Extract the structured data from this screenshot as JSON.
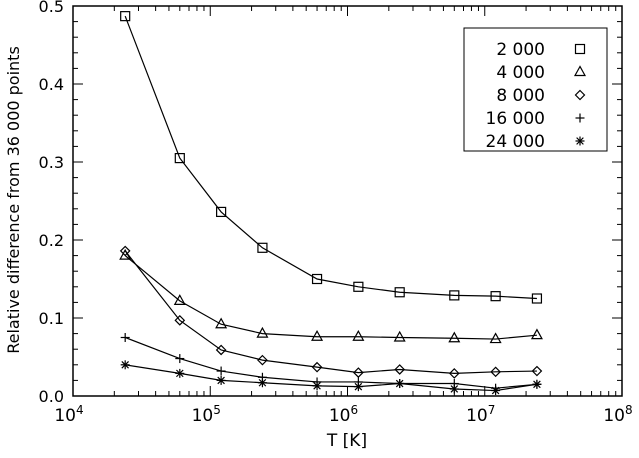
{
  "chart_data": {
    "type": "line",
    "title": "",
    "xlabel": "T [K]",
    "ylabel": "Relative difference from 36 000 points",
    "xscale": "log",
    "xlim": [
      10000,
      100000000
    ],
    "ylim": [
      0,
      0.5
    ],
    "xticks": [
      {
        "base": "10",
        "exp": "4"
      },
      {
        "base": "10",
        "exp": "5"
      },
      {
        "base": "10",
        "exp": "6"
      },
      {
        "base": "10",
        "exp": "7"
      },
      {
        "base": "10",
        "exp": "8"
      }
    ],
    "yticks": [
      "0.0",
      "0.1",
      "0.2",
      "0.3",
      "0.4",
      "0.5"
    ],
    "legend_position": "top-right",
    "x": [
      24000,
      60000,
      120000,
      240000,
      600000,
      1200000,
      2400000,
      6000000,
      12000000,
      24000000
    ],
    "series": [
      {
        "name": "2 000",
        "marker": "square",
        "values": [
          0.487,
          0.305,
          0.236,
          0.19,
          0.15,
          0.14,
          0.133,
          0.129,
          0.128,
          0.125
        ]
      },
      {
        "name": "4 000",
        "marker": "triangle",
        "values": [
          0.18,
          0.122,
          0.092,
          0.08,
          0.076,
          0.076,
          0.075,
          0.074,
          0.073,
          0.078
        ]
      },
      {
        "name": "8 000",
        "marker": "diamond",
        "values": [
          0.186,
          0.097,
          0.059,
          0.046,
          0.037,
          0.03,
          0.034,
          0.029,
          0.031,
          0.032
        ]
      },
      {
        "name": "16 000",
        "marker": "plus",
        "values": [
          0.075,
          0.048,
          0.032,
          0.024,
          0.018,
          0.018,
          0.016,
          0.016,
          0.01,
          0.015
        ]
      },
      {
        "name": "24 000",
        "marker": "asterisk",
        "values": [
          0.04,
          0.029,
          0.02,
          0.017,
          0.013,
          0.012,
          0.016,
          0.009,
          0.007,
          0.015
        ]
      }
    ]
  }
}
